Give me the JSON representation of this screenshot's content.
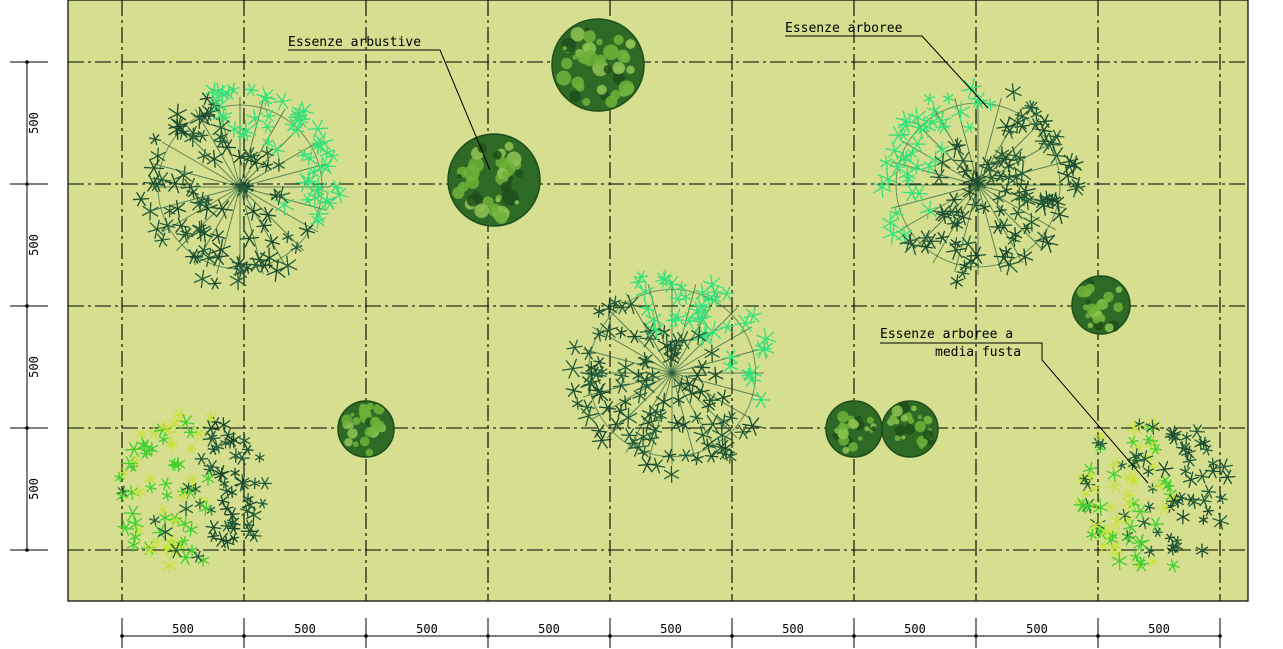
{
  "colors": {
    "paper": "#ffffff",
    "ground": "#d5df8f",
    "grid_line": "#000000",
    "tree_dark": "#1a4a2e",
    "tree_mid": "#245c3a",
    "tree_highlight": "#33e07a",
    "tree_light_yellow": "#c8e23a",
    "tree_light_green": "#3fcf2f",
    "shrub_dark": "#2e6a25",
    "shrub_light": "#6fb33a"
  },
  "labels": {
    "shrubs": "Essenze arbustive",
    "trees": "Essenze arboree",
    "medium_trees_line1": "Essenze arboree a",
    "medium_trees_line2": "media fusta"
  },
  "dimensions": {
    "horizontal": [
      "500",
      "500",
      "500",
      "500",
      "500",
      "500",
      "500",
      "500",
      "500"
    ],
    "vertical": [
      "500",
      "500",
      "500",
      "500"
    ]
  },
  "icons": {
    "large_tree": "tree-canopy-icon",
    "shrub": "shrub-icon",
    "medium_tree": "medium-tree-canopy-icon"
  }
}
